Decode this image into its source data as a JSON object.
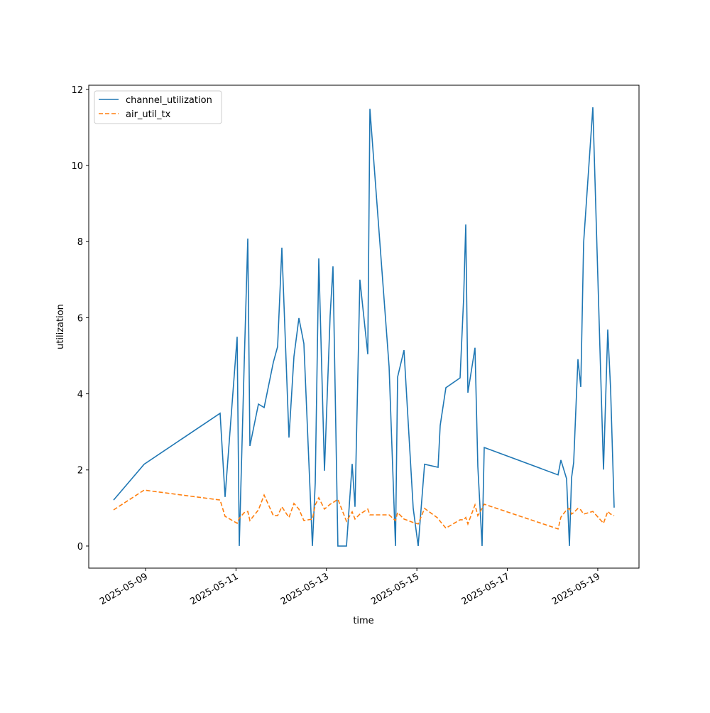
{
  "chart_data": {
    "type": "line",
    "x_label": "time",
    "y_label": "utilization",
    "x": [
      "2025-05-08T07:03",
      "2025-05-08T23:15",
      "2025-05-10T15:34",
      "2025-05-10T18:12",
      "2025-05-11T00:36",
      "2025-05-11T01:44",
      "2025-05-11T04:23",
      "2025-05-11T06:16",
      "2025-05-11T07:23",
      "2025-05-11T11:55",
      "2025-05-11T14:56",
      "2025-05-11T19:49",
      "2025-05-11T22:05",
      "2025-05-12T00:21",
      "2025-05-12T04:07",
      "2025-05-12T06:45",
      "2025-05-12T09:23",
      "2025-05-12T12:02",
      "2025-05-12T16:33",
      "2025-05-12T18:04",
      "2025-05-12T19:56",
      "2025-05-12T22:57",
      "2025-05-13T01:58",
      "2025-05-13T03:29",
      "2025-05-13T06:06",
      "2025-05-13T10:38",
      "2025-05-13T13:39",
      "2025-05-13T15:10",
      "2025-05-13T17:47",
      "2025-05-13T21:56",
      "2025-05-13T23:04",
      "2025-05-14T09:14",
      "2025-05-14T12:38",
      "2025-05-14T13:46",
      "2025-05-14T17:10",
      "2025-05-14T22:03",
      "2025-05-15T00:41",
      "2025-05-15T04:05",
      "2025-05-15T11:14",
      "2025-05-15T12:22",
      "2025-05-15T15:23",
      "2025-05-15T22:55",
      "2025-05-16T00:48",
      "2025-05-16T01:56",
      "2025-05-16T03:04",
      "2025-05-16T06:50",
      "2025-05-16T08:20",
      "2025-05-16T10:36",
      "2025-05-16T11:44",
      "2025-05-18T02:55",
      "2025-05-18T04:26",
      "2025-05-18T07:26",
      "2025-05-18T08:57",
      "2025-05-18T10:05",
      "2025-05-18T11:13",
      "2025-05-18T13:28",
      "2025-05-18T14:59",
      "2025-05-18T16:29",
      "2025-05-18T21:23",
      "2025-05-19T03:02",
      "2025-05-19T05:18",
      "2025-05-19T06:48",
      "2025-05-19T08:41"
    ],
    "series": [
      {
        "name": "channel_utilization",
        "color": "#1f77b4",
        "dash": "solid",
        "values": [
          1.21,
          2.15,
          3.49,
          1.29,
          5.5,
          0,
          4.83,
          8.08,
          2.63,
          3.73,
          3.64,
          4.83,
          5.24,
          7.84,
          2.85,
          4.98,
          5.99,
          5.32,
          0,
          1.66,
          7.56,
          1.98,
          6.06,
          7.35,
          0,
          0,
          2.16,
          1.03,
          7.0,
          5.04,
          11.49,
          4.72,
          0,
          4.44,
          5.15,
          0.99,
          0,
          2.15,
          2.07,
          3.17,
          4.16,
          4.42,
          6.51,
          8.45,
          4.03,
          5.21,
          2.09,
          0,
          2.59,
          1.87,
          2.26,
          1.77,
          0,
          1.79,
          2.2,
          4.91,
          4.18,
          7.97,
          11.53,
          2.01,
          5.69,
          4.12,
          1.01
        ]
      },
      {
        "name": "air_util_tx",
        "color": "#ff7f0e",
        "dash": "dashed",
        "values": [
          0.95,
          1.47,
          1.21,
          0.78,
          0.6,
          0.73,
          0.88,
          0.91,
          0.67,
          0.95,
          1.34,
          0.8,
          0.8,
          1.03,
          0.75,
          1.12,
          0.97,
          0.67,
          0.71,
          1.08,
          1.27,
          0.97,
          1.1,
          1.14,
          1.23,
          0.65,
          0.9,
          0.71,
          0.84,
          0.97,
          0.82,
          0.82,
          0.67,
          0.88,
          0.71,
          0.62,
          0.58,
          0.99,
          0.73,
          0.65,
          0.47,
          0.69,
          0.69,
          0.75,
          0.58,
          1.08,
          0.8,
          0.99,
          1.1,
          0.45,
          0.76,
          0.95,
          0.99,
          0.84,
          0.88,
          0.99,
          0.95,
          0.84,
          0.91,
          0.6,
          0.91,
          0.84,
          0.8
        ]
      }
    ],
    "xlim": [
      "2025-05-07T17:52",
      "2025-05-19T21:53"
    ],
    "xticks": [
      "2025-05-09",
      "2025-05-11",
      "2025-05-13",
      "2025-05-15",
      "2025-05-17",
      "2025-05-19"
    ],
    "ylim": [
      -0.58,
      12.11
    ],
    "yticks": [
      0,
      2,
      4,
      6,
      8,
      10,
      12
    ],
    "legend": "upper left",
    "grid": false
  }
}
